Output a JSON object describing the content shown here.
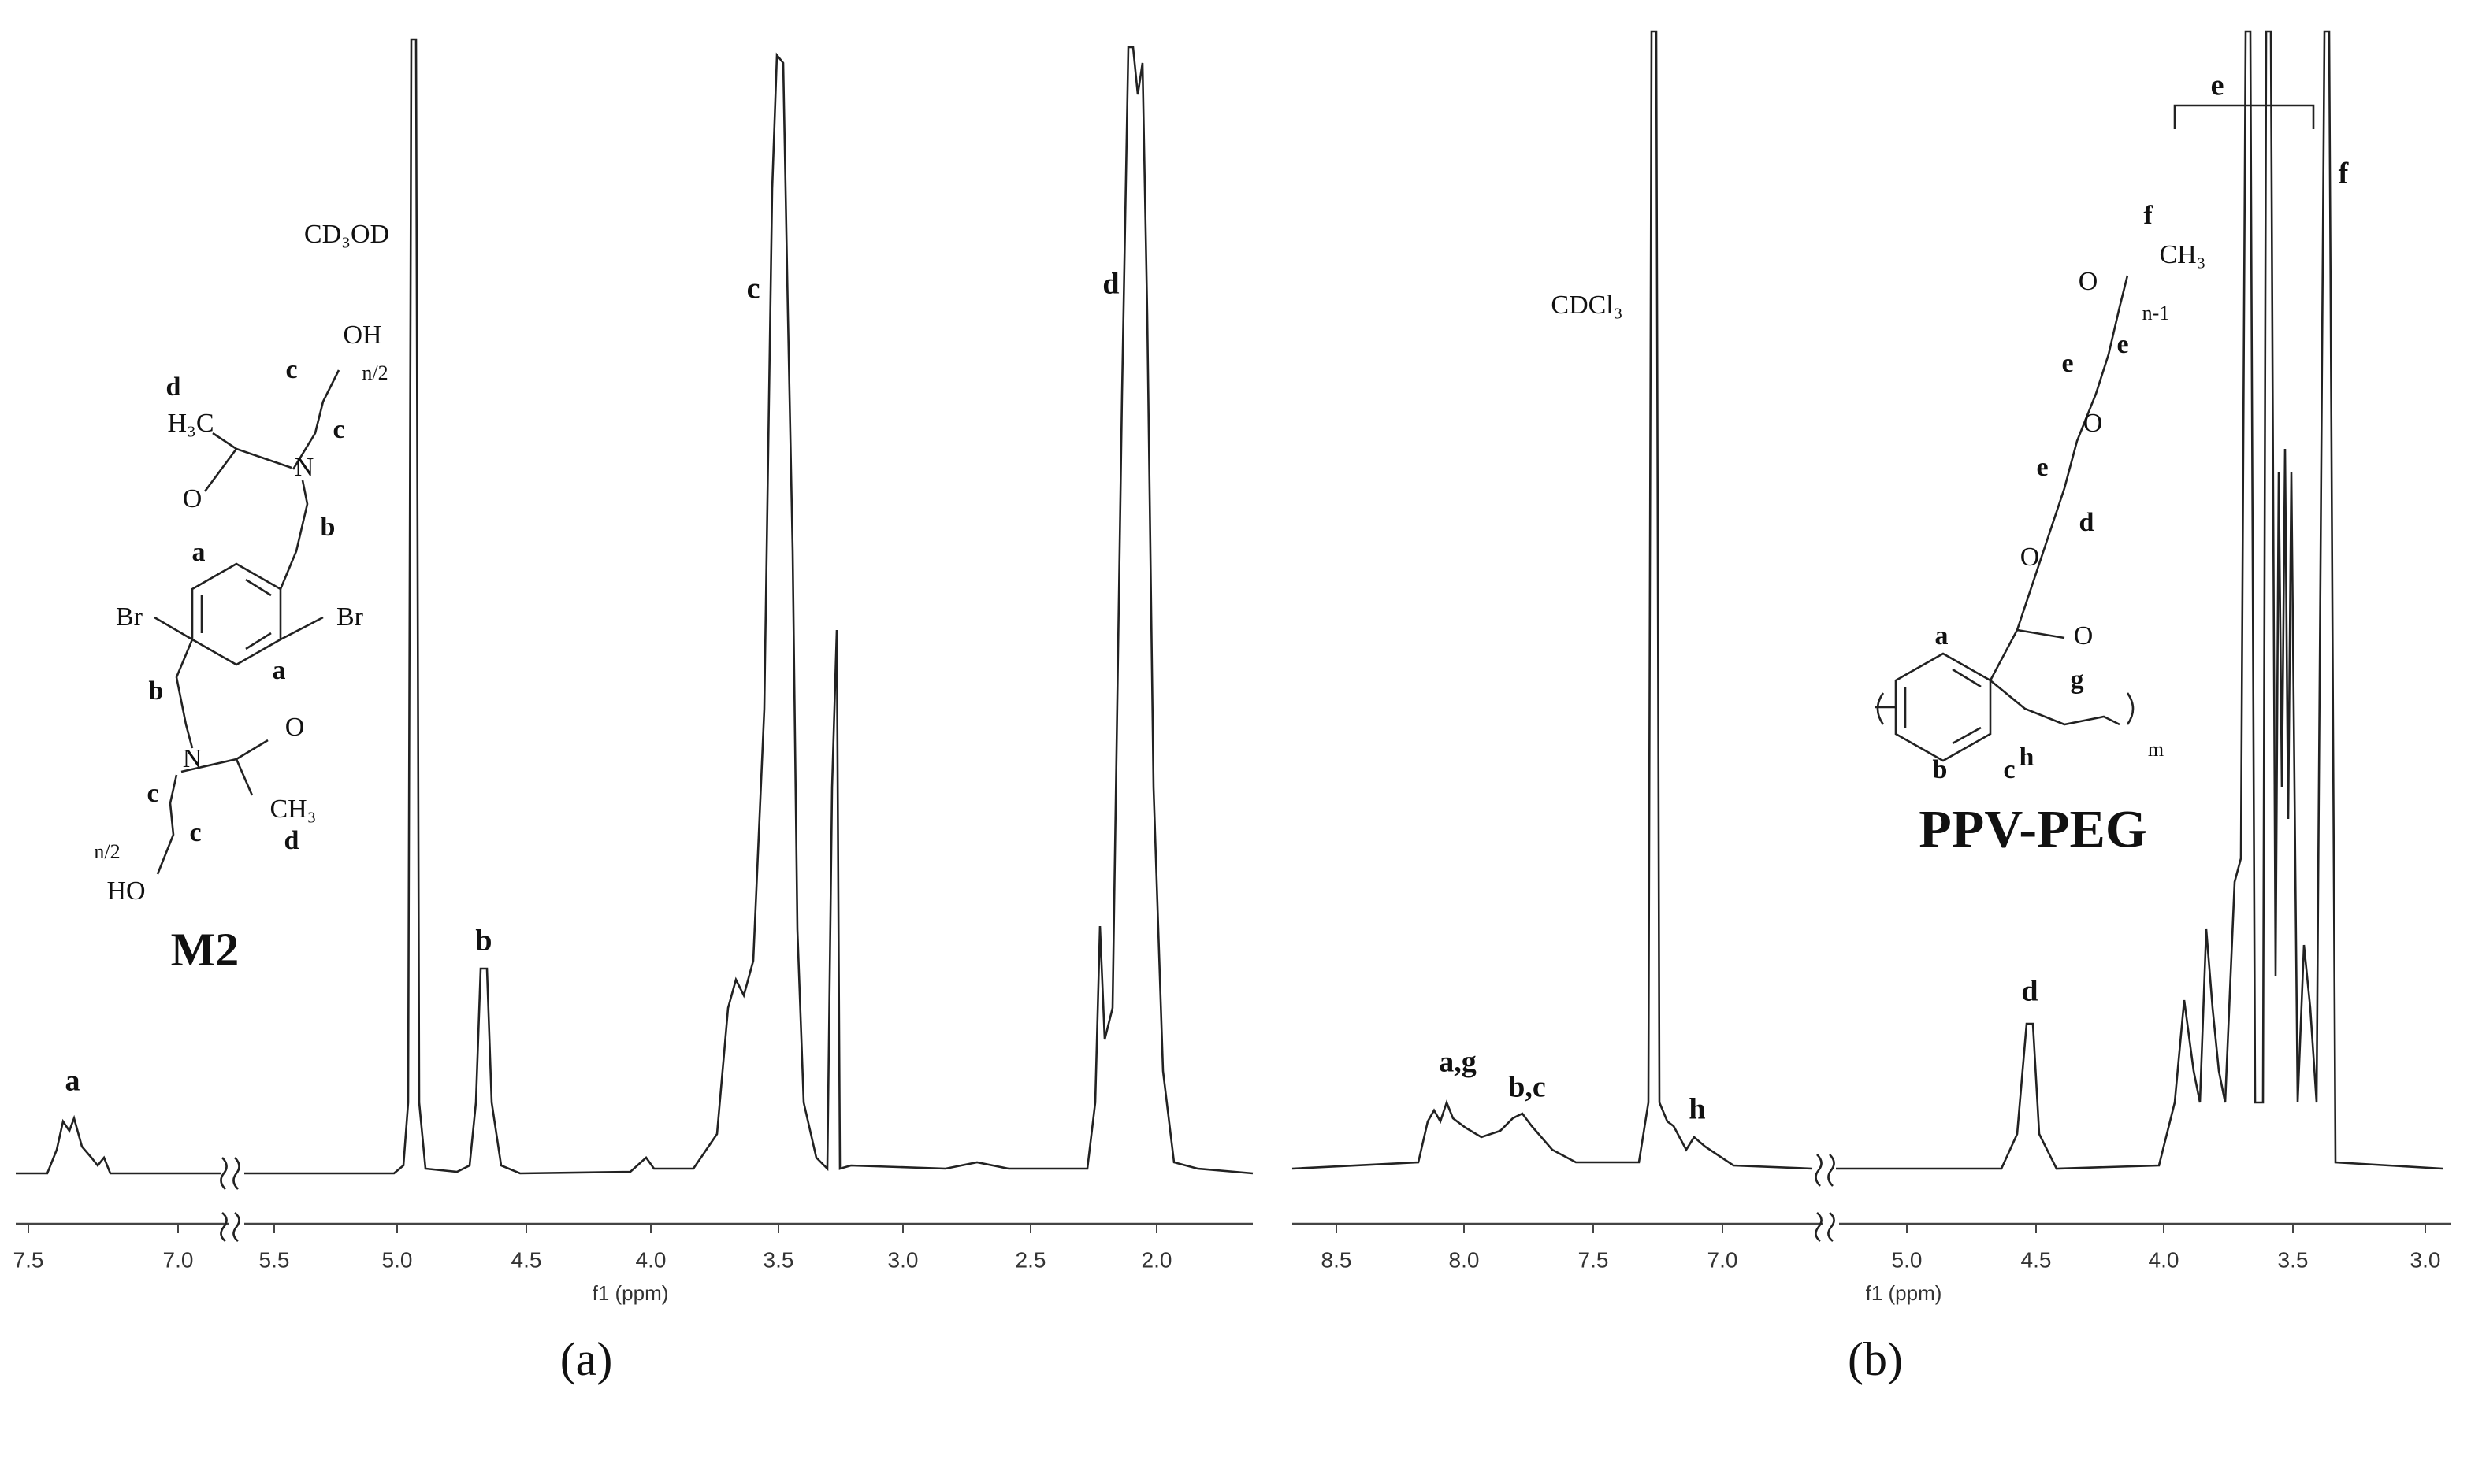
{
  "panels": [
    {
      "label": "(a)",
      "axis_label": "f1 (ppm)",
      "ticks": [
        "7.5",
        "7.0",
        "5.5",
        "5.0",
        "4.5",
        "4.0",
        "3.5",
        "3.0",
        "2.5",
        "2.0"
      ],
      "solvent": "CD₃OD",
      "compound": "M2",
      "peaks": [
        "a",
        "b",
        "c",
        "d"
      ],
      "structure_labels": [
        "d",
        "H₃C",
        "c",
        "OH",
        "n/2",
        "c",
        "N",
        "O",
        "b",
        "a",
        "Br",
        "Br",
        "b",
        "a",
        "N",
        "O",
        "c",
        "CH₃",
        "c",
        "d",
        "n/2",
        "HO"
      ]
    },
    {
      "label": "(b)",
      "axis_label": "f1 (ppm)",
      "ticks": [
        "8.5",
        "8.0",
        "7.5",
        "7.0",
        "5.0",
        "4.5",
        "4.0",
        "3.5",
        "3.0"
      ],
      "solvent": "CDCl₃",
      "compound": "PPV-PEG",
      "peaks": [
        "a,g",
        "b,c",
        "h",
        "d",
        "e",
        "f"
      ],
      "structure_labels": [
        "f",
        "CH₃",
        "O",
        "n-1",
        "e",
        "e",
        "O",
        "e",
        "d",
        "O",
        "O",
        "a",
        "g",
        "b",
        "c",
        "h",
        "m"
      ]
    }
  ]
}
